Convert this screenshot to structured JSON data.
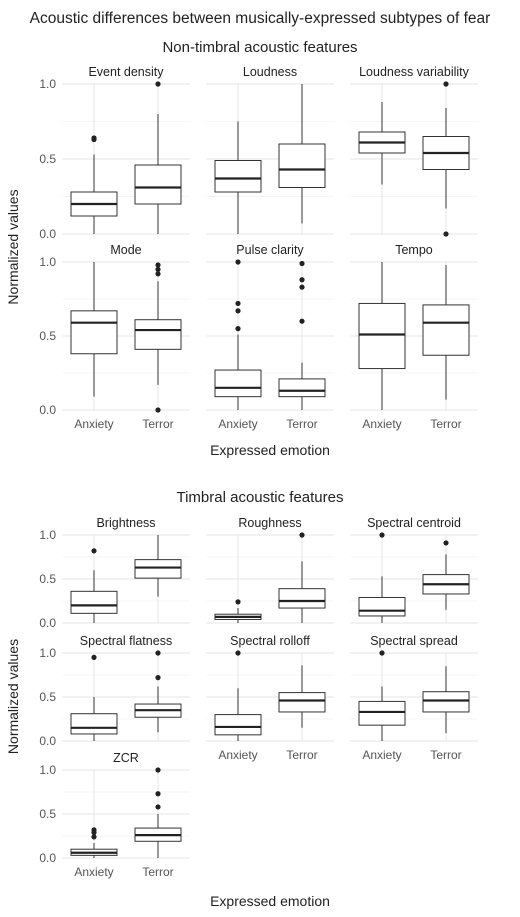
{
  "title": "Acoustic differences between musically-expressed subtypes of fear",
  "y_axis_label": "Normalized values",
  "x_axis_label": "Expressed emotion",
  "chart_data": [
    {
      "type": "boxplot",
      "title": "Non-timbral acoustic features",
      "xlabel": "Expressed emotion",
      "ylabel": "Normalized values",
      "categories": [
        "Anxiety",
        "Terror"
      ],
      "yticks": [
        "0.0",
        "0.5",
        "1.0"
      ],
      "ylim": [
        0,
        1
      ],
      "grid": true,
      "facets": [
        {
          "name": "Event density",
          "boxes": [
            {
              "category": "Anxiety",
              "whisker_low": 0.0,
              "q1": 0.12,
              "median": 0.2,
              "q3": 0.28,
              "whisker_high": 0.53,
              "outliers": [
                0.63,
                0.64
              ]
            },
            {
              "category": "Terror",
              "whisker_low": 0.0,
              "q1": 0.2,
              "median": 0.31,
              "q3": 0.46,
              "whisker_high": 0.8,
              "outliers": [
                1.0
              ]
            }
          ]
        },
        {
          "name": "Loudness",
          "boxes": [
            {
              "category": "Anxiety",
              "whisker_low": 0.0,
              "q1": 0.28,
              "median": 0.37,
              "q3": 0.49,
              "whisker_high": 0.75,
              "outliers": []
            },
            {
              "category": "Terror",
              "whisker_low": 0.07,
              "q1": 0.31,
              "median": 0.43,
              "q3": 0.6,
              "whisker_high": 1.0,
              "outliers": []
            }
          ]
        },
        {
          "name": "Loudness variability",
          "boxes": [
            {
              "category": "Anxiety",
              "whisker_low": 0.33,
              "q1": 0.54,
              "median": 0.61,
              "q3": 0.68,
              "whisker_high": 0.88,
              "outliers": []
            },
            {
              "category": "Terror",
              "whisker_low": 0.17,
              "q1": 0.43,
              "median": 0.54,
              "q3": 0.65,
              "whisker_high": 0.84,
              "outliers": [
                1.0,
                0.0
              ]
            }
          ]
        },
        {
          "name": "Mode",
          "boxes": [
            {
              "category": "Anxiety",
              "whisker_low": 0.09,
              "q1": 0.38,
              "median": 0.59,
              "q3": 0.67,
              "whisker_high": 1.0,
              "outliers": []
            },
            {
              "category": "Terror",
              "whisker_low": 0.17,
              "q1": 0.41,
              "median": 0.54,
              "q3": 0.61,
              "whisker_high": 0.87,
              "outliers": [
                0.98,
                0.95,
                0.92,
                0.0
              ]
            }
          ]
        },
        {
          "name": "Pulse clarity",
          "boxes": [
            {
              "category": "Anxiety",
              "whisker_low": 0.0,
              "q1": 0.09,
              "median": 0.15,
              "q3": 0.27,
              "whisker_high": 0.51,
              "outliers": [
                1.0,
                0.72,
                0.67,
                0.55
              ]
            },
            {
              "category": "Terror",
              "whisker_low": 0.0,
              "q1": 0.09,
              "median": 0.13,
              "q3": 0.21,
              "whisker_high": 0.32,
              "outliers": [
                0.99,
                0.88,
                0.83,
                0.6
              ]
            }
          ]
        },
        {
          "name": "Tempo",
          "boxes": [
            {
              "category": "Anxiety",
              "whisker_low": 0.0,
              "q1": 0.28,
              "median": 0.51,
              "q3": 0.72,
              "whisker_high": 1.0,
              "outliers": []
            },
            {
              "category": "Terror",
              "whisker_low": 0.07,
              "q1": 0.37,
              "median": 0.59,
              "q3": 0.71,
              "whisker_high": 0.98,
              "outliers": []
            }
          ]
        }
      ]
    },
    {
      "type": "boxplot",
      "title": "Timbral acoustic features",
      "xlabel": "Expressed emotion",
      "ylabel": "Normalized values",
      "categories": [
        "Anxiety",
        "Terror"
      ],
      "yticks": [
        "0.0",
        "0.5",
        "1.0"
      ],
      "ylim": [
        0,
        1
      ],
      "grid": true,
      "facets": [
        {
          "name": "Brightness",
          "boxes": [
            {
              "category": "Anxiety",
              "whisker_low": 0.0,
              "q1": 0.11,
              "median": 0.2,
              "q3": 0.36,
              "whisker_high": 0.6,
              "outliers": [
                0.82
              ]
            },
            {
              "category": "Terror",
              "whisker_low": 0.3,
              "q1": 0.51,
              "median": 0.63,
              "q3": 0.72,
              "whisker_high": 1.0,
              "outliers": []
            }
          ]
        },
        {
          "name": "Roughness",
          "boxes": [
            {
              "category": "Anxiety",
              "whisker_low": 0.0,
              "q1": 0.04,
              "median": 0.07,
              "q3": 0.1,
              "whisker_high": 0.17,
              "outliers": [
                0.24
              ]
            },
            {
              "category": "Terror",
              "whisker_low": 0.0,
              "q1": 0.17,
              "median": 0.25,
              "q3": 0.39,
              "whisker_high": 0.7,
              "outliers": [
                1.0
              ]
            }
          ]
        },
        {
          "name": "Spectral centroid",
          "boxes": [
            {
              "category": "Anxiety",
              "whisker_low": 0.0,
              "q1": 0.08,
              "median": 0.14,
              "q3": 0.29,
              "whisker_high": 0.53,
              "outliers": [
                1.0
              ]
            },
            {
              "category": "Terror",
              "whisker_low": 0.15,
              "q1": 0.33,
              "median": 0.44,
              "q3": 0.55,
              "whisker_high": 0.78,
              "outliers": [
                0.91
              ]
            }
          ]
        },
        {
          "name": "Spectral flatness",
          "boxes": [
            {
              "category": "Anxiety",
              "whisker_low": 0.0,
              "q1": 0.08,
              "median": 0.15,
              "q3": 0.31,
              "whisker_high": 0.5,
              "outliers": [
                0.95
              ]
            },
            {
              "category": "Terror",
              "whisker_low": 0.1,
              "q1": 0.27,
              "median": 0.35,
              "q3": 0.42,
              "whisker_high": 0.62,
              "outliers": [
                1.0,
                0.72
              ]
            }
          ]
        },
        {
          "name": "Spectral rolloff",
          "boxes": [
            {
              "category": "Anxiety",
              "whisker_low": 0.0,
              "q1": 0.07,
              "median": 0.16,
              "q3": 0.3,
              "whisker_high": 0.6,
              "outliers": [
                1.0
              ]
            },
            {
              "category": "Terror",
              "whisker_low": 0.15,
              "q1": 0.33,
              "median": 0.46,
              "q3": 0.55,
              "whisker_high": 0.86,
              "outliers": []
            }
          ]
        },
        {
          "name": "Spectral spread",
          "boxes": [
            {
              "category": "Anxiety",
              "whisker_low": 0.0,
              "q1": 0.18,
              "median": 0.33,
              "q3": 0.45,
              "whisker_high": 0.62,
              "outliers": [
                1.0
              ]
            },
            {
              "category": "Terror",
              "whisker_low": 0.09,
              "q1": 0.33,
              "median": 0.46,
              "q3": 0.56,
              "whisker_high": 0.85,
              "outliers": []
            }
          ]
        },
        {
          "name": "ZCR",
          "boxes": [
            {
              "category": "Anxiety",
              "whisker_low": 0.0,
              "q1": 0.03,
              "median": 0.06,
              "q3": 0.1,
              "whisker_high": 0.17,
              "outliers": [
                0.32,
                0.29,
                0.24
              ]
            },
            {
              "category": "Terror",
              "whisker_low": 0.0,
              "q1": 0.19,
              "median": 0.26,
              "q3": 0.34,
              "whisker_high": 0.5,
              "outliers": [
                1.0,
                0.73,
                0.58
              ]
            }
          ]
        }
      ]
    }
  ]
}
